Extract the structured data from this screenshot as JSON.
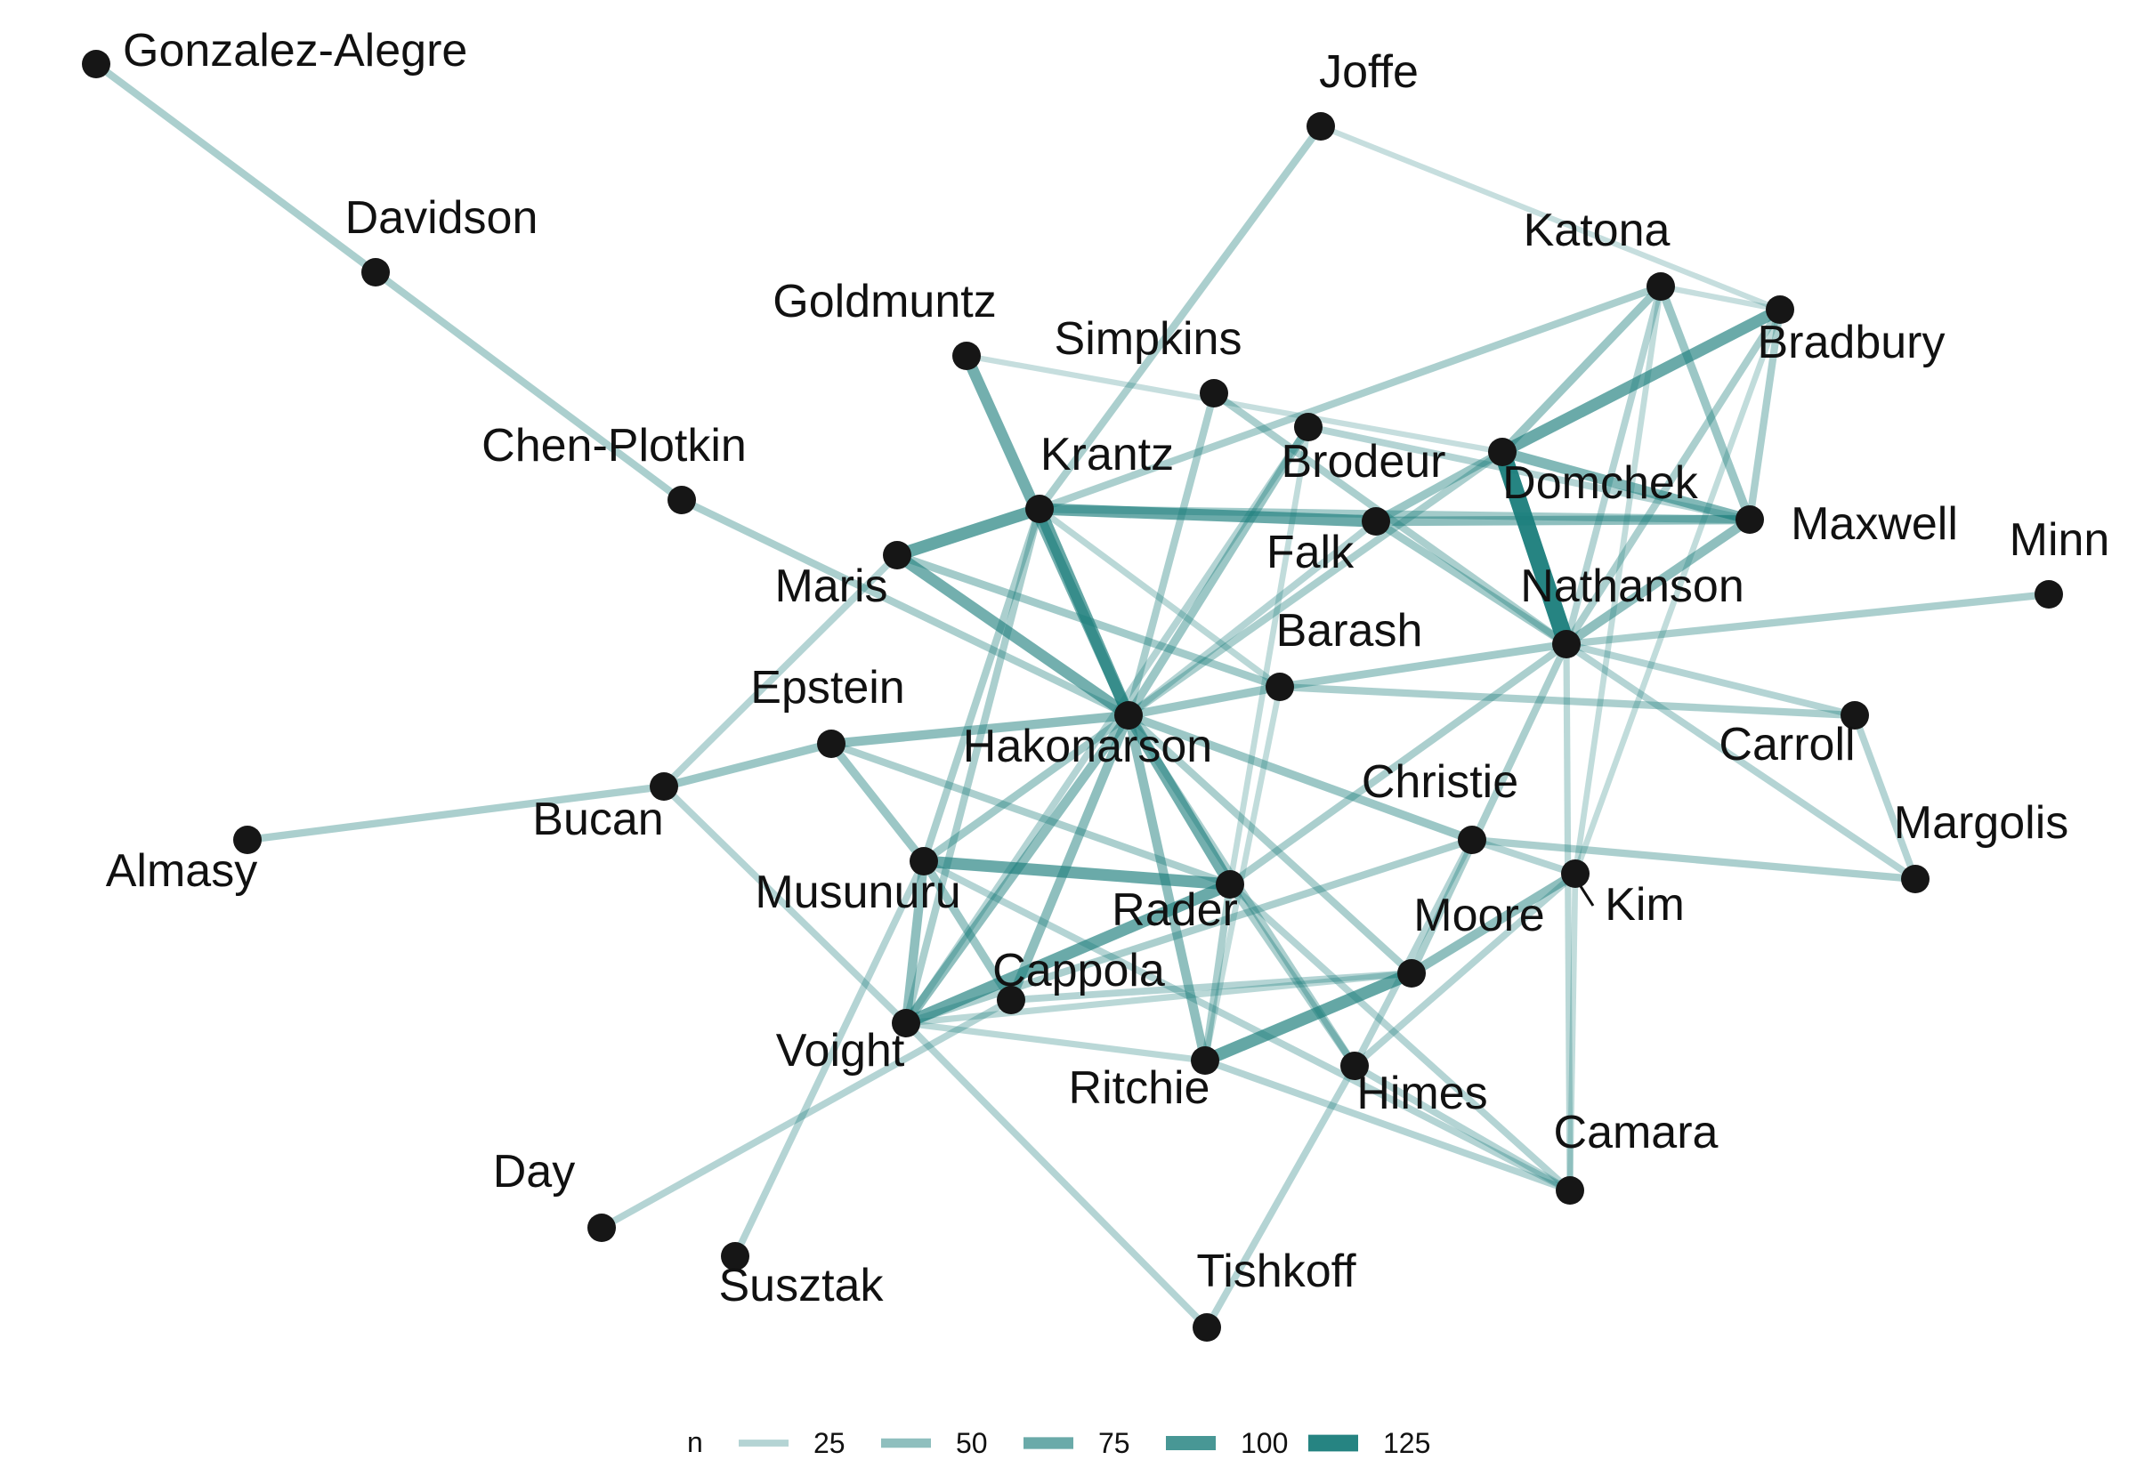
{
  "legend": {
    "title": "n",
    "entries": [
      {
        "label": "25",
        "value": 25
      },
      {
        "label": "50",
        "value": 50
      },
      {
        "label": "75",
        "value": 75
      },
      {
        "label": "100",
        "value": 100
      },
      {
        "label": "125",
        "value": 125
      }
    ]
  },
  "colors": {
    "edge": "#1a7d7b",
    "node": "#161616",
    "text": "#111111",
    "background": "#ffffff"
  },
  "nodes": [
    {
      "id": "Gonzalez-Alegre",
      "label": "Gonzalez-Alegre"
    },
    {
      "id": "Davidson",
      "label": "Davidson"
    },
    {
      "id": "Joffe",
      "label": "Joffe"
    },
    {
      "id": "Katona",
      "label": "Katona"
    },
    {
      "id": "Bradbury",
      "label": "Bradbury"
    },
    {
      "id": "Goldmuntz",
      "label": "Goldmuntz"
    },
    {
      "id": "Simpkins",
      "label": "Simpkins"
    },
    {
      "id": "Chen-Plotkin",
      "label": "Chen-Plotkin"
    },
    {
      "id": "Krantz",
      "label": "Krantz"
    },
    {
      "id": "Brodeur",
      "label": "Brodeur"
    },
    {
      "id": "Domchek",
      "label": "Domchek"
    },
    {
      "id": "Maxwell",
      "label": "Maxwell"
    },
    {
      "id": "Minn",
      "label": "Minn"
    },
    {
      "id": "Maris",
      "label": "Maris"
    },
    {
      "id": "Falk",
      "label": "Falk"
    },
    {
      "id": "Nathanson",
      "label": "Nathanson"
    },
    {
      "id": "Barash",
      "label": "Barash"
    },
    {
      "id": "Epstein",
      "label": "Epstein"
    },
    {
      "id": "Hakonarson",
      "label": "Hakonarson"
    },
    {
      "id": "Carroll",
      "label": "Carroll"
    },
    {
      "id": "Bucan",
      "label": "Bucan"
    },
    {
      "id": "Almasy",
      "label": "Almasy"
    },
    {
      "id": "Christie",
      "label": "Christie"
    },
    {
      "id": "Margolis",
      "label": "Margolis"
    },
    {
      "id": "Musunuru",
      "label": "Musunuru"
    },
    {
      "id": "Rader",
      "label": "Rader"
    },
    {
      "id": "Kim",
      "label": "Kim"
    },
    {
      "id": "Moore",
      "label": "Moore"
    },
    {
      "id": "Cappola",
      "label": "Cappola"
    },
    {
      "id": "Voight",
      "label": "Voight"
    },
    {
      "id": "Ritchie",
      "label": "Ritchie"
    },
    {
      "id": "Himes",
      "label": "Himes"
    },
    {
      "id": "Camara",
      "label": "Camara"
    },
    {
      "id": "Day",
      "label": "Day"
    },
    {
      "id": "Susztak",
      "label": "Susztak"
    },
    {
      "id": "Tishkoff",
      "label": "Tishkoff"
    }
  ],
  "edges": [
    {
      "source": "Gonzalez-Alegre",
      "target": "Davidson",
      "n": 30
    },
    {
      "source": "Davidson",
      "target": "Chen-Plotkin",
      "n": 30
    },
    {
      "source": "Chen-Plotkin",
      "target": "Hakonarson",
      "n": 30
    },
    {
      "source": "Joffe",
      "target": "Bradbury",
      "n": 12
    },
    {
      "source": "Joffe",
      "target": "Krantz",
      "n": 30
    },
    {
      "source": "Katona",
      "target": "Bradbury",
      "n": 12
    },
    {
      "source": "Katona",
      "target": "Domchek",
      "n": 40
    },
    {
      "source": "Katona",
      "target": "Maxwell",
      "n": 40
    },
    {
      "source": "Katona",
      "target": "Nathanson",
      "n": 25
    },
    {
      "source": "Katona",
      "target": "Krantz",
      "n": 30
    },
    {
      "source": "Katona",
      "target": "Kim",
      "n": 15
    },
    {
      "source": "Bradbury",
      "target": "Domchek",
      "n": 75
    },
    {
      "source": "Bradbury",
      "target": "Maxwell",
      "n": 30
    },
    {
      "source": "Bradbury",
      "target": "Nathanson",
      "n": 30
    },
    {
      "source": "Bradbury",
      "target": "Kim",
      "n": 15
    },
    {
      "source": "Goldmuntz",
      "target": "Hakonarson",
      "n": 70
    },
    {
      "source": "Goldmuntz",
      "target": "Domchek",
      "n": 12
    },
    {
      "source": "Simpkins",
      "target": "Hakonarson",
      "n": 30
    },
    {
      "source": "Simpkins",
      "target": "Nathanson",
      "n": 30
    },
    {
      "source": "Maris",
      "target": "Krantz",
      "n": 80
    },
    {
      "source": "Krantz",
      "target": "Brodeur",
      "n": 75
    },
    {
      "source": "Krantz",
      "target": "Maxwell",
      "n": 35
    },
    {
      "source": "Krantz",
      "target": "Hakonarson",
      "n": 80
    },
    {
      "source": "Krantz",
      "target": "Barash",
      "n": 20
    },
    {
      "source": "Krantz",
      "target": "Musunuru",
      "n": 30
    },
    {
      "source": "Krantz",
      "target": "Voight",
      "n": 30
    },
    {
      "source": "Brodeur",
      "target": "Domchek",
      "n": 40
    },
    {
      "source": "Brodeur",
      "target": "Maxwell",
      "n": 50
    },
    {
      "source": "Brodeur",
      "target": "Nathanson",
      "n": 35
    },
    {
      "source": "Brodeur",
      "target": "Hakonarson",
      "n": 25
    },
    {
      "source": "Domchek",
      "target": "Maxwell",
      "n": 60
    },
    {
      "source": "Domchek",
      "target": "Nathanson",
      "n": 130
    },
    {
      "source": "Domchek",
      "target": "Hakonarson",
      "n": 30
    },
    {
      "source": "Maxwell",
      "target": "Nathanson",
      "n": 50
    },
    {
      "source": "Maxwell",
      "target": "Falk",
      "n": 25
    },
    {
      "source": "Minn",
      "target": "Nathanson",
      "n": 30
    },
    {
      "source": "Maris",
      "target": "Hakonarson",
      "n": 70
    },
    {
      "source": "Maris",
      "target": "Barash",
      "n": 35
    },
    {
      "source": "Maris",
      "target": "Bucan",
      "n": 25
    },
    {
      "source": "Falk",
      "target": "Hakonarson",
      "n": 40
    },
    {
      "source": "Falk",
      "target": "Rader",
      "n": 15
    },
    {
      "source": "Falk",
      "target": "Voight",
      "n": 25
    },
    {
      "source": "Nathanson",
      "target": "Barash",
      "n": 35
    },
    {
      "source": "Nathanson",
      "target": "Carroll",
      "n": 25
    },
    {
      "source": "Nathanson",
      "target": "Margolis",
      "n": 25
    },
    {
      "source": "Nathanson",
      "target": "Camara",
      "n": 20
    },
    {
      "source": "Nathanson",
      "target": "Moore",
      "n": 30
    },
    {
      "source": "Nathanson",
      "target": "Rader",
      "n": 30
    },
    {
      "source": "Barash",
      "target": "Hakonarson",
      "n": 40
    },
    {
      "source": "Barash",
      "target": "Carroll",
      "n": 30
    },
    {
      "source": "Barash",
      "target": "Ritchie",
      "n": 15
    },
    {
      "source": "Epstein",
      "target": "Hakonarson",
      "n": 50
    },
    {
      "source": "Epstein",
      "target": "Musunuru",
      "n": 40
    },
    {
      "source": "Epstein",
      "target": "Rader",
      "n": 30
    },
    {
      "source": "Epstein",
      "target": "Bucan",
      "n": 40
    },
    {
      "source": "Hakonarson",
      "target": "Christie",
      "n": 40
    },
    {
      "source": "Hakonarson",
      "target": "Musunuru",
      "n": 35
    },
    {
      "source": "Hakonarson",
      "target": "Rader",
      "n": 70
    },
    {
      "source": "Hakonarson",
      "target": "Cappola",
      "n": 50
    },
    {
      "source": "Hakonarson",
      "target": "Voight",
      "n": 50
    },
    {
      "source": "Hakonarson",
      "target": "Ritchie",
      "n": 50
    },
    {
      "source": "Hakonarson",
      "target": "Himes",
      "n": 30
    },
    {
      "source": "Hakonarson",
      "target": "Moore",
      "n": 30
    },
    {
      "source": "Carroll",
      "target": "Margolis",
      "n": 25
    },
    {
      "source": "Bucan",
      "target": "Almasy",
      "n": 30
    },
    {
      "source": "Bucan",
      "target": "Voight",
      "n": 25
    },
    {
      "source": "Christie",
      "target": "Margolis",
      "n": 30
    },
    {
      "source": "Christie",
      "target": "Kim",
      "n": 25
    },
    {
      "source": "Christie",
      "target": "Voight",
      "n": 30
    },
    {
      "source": "Christie",
      "target": "Himes",
      "n": 25
    },
    {
      "source": "Musunuru",
      "target": "Rader",
      "n": 75
    },
    {
      "source": "Musunuru",
      "target": "Cappola",
      "n": 40
    },
    {
      "source": "Musunuru",
      "target": "Voight",
      "n": 50
    },
    {
      "source": "Musunuru",
      "target": "Susztak",
      "n": 25
    },
    {
      "source": "Musunuru",
      "target": "Camara",
      "n": 25
    },
    {
      "source": "Rader",
      "target": "Voight",
      "n": 75
    },
    {
      "source": "Rader",
      "target": "Ritchie",
      "n": 30
    },
    {
      "source": "Rader",
      "target": "Himes",
      "n": 30
    },
    {
      "source": "Rader",
      "target": "Camara",
      "n": 25
    },
    {
      "source": "Kim",
      "target": "Moore",
      "n": 50
    },
    {
      "source": "Kim",
      "target": "Himes",
      "n": 25
    },
    {
      "source": "Kim",
      "target": "Camara",
      "n": 15
    },
    {
      "source": "Moore",
      "target": "Ritchie",
      "n": 80
    },
    {
      "source": "Moore",
      "target": "Cappola",
      "n": 25
    },
    {
      "source": "Moore",
      "target": "Voight",
      "n": 20
    },
    {
      "source": "Voight",
      "target": "Ritchie",
      "n": 20
    },
    {
      "source": "Voight",
      "target": "Tishkoff",
      "n": 25
    },
    {
      "source": "Ritchie",
      "target": "Camara",
      "n": 25
    },
    {
      "source": "Himes",
      "target": "Tishkoff",
      "n": 25
    },
    {
      "source": "Himes",
      "target": "Camara",
      "n": 25
    },
    {
      "source": "Cappola",
      "target": "Day",
      "n": 25
    }
  ]
}
